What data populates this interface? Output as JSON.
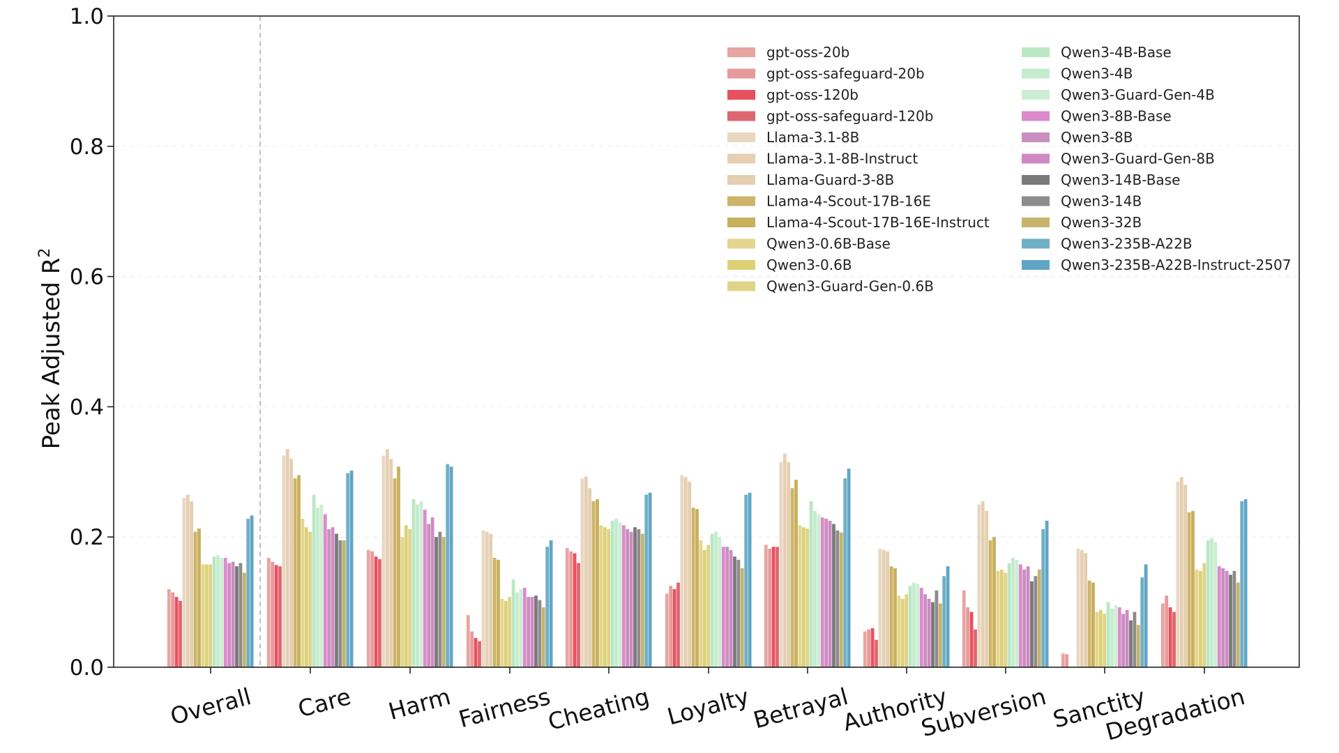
{
  "chart_data": {
    "type": "bar",
    "title": "",
    "xlabel": "",
    "ylabel": "Peak Adjusted R",
    "ylabel_superscript": "2",
    "ylim": [
      0,
      1.0
    ],
    "yticks": [
      "0.0",
      "0.2",
      "0.4",
      "0.6",
      "0.8",
      "1.0"
    ],
    "grid": true,
    "legend_position": "top-right",
    "categories": [
      "Overall",
      "Care",
      "Harm",
      "Fairness",
      "Cheating",
      "Loyalty",
      "Betrayal",
      "Authority",
      "Subversion",
      "Sanctity",
      "Degradation"
    ],
    "series": [
      {
        "name": "gpt-oss-20b",
        "color": "#e8a5a0",
        "values": [
          0.12,
          0.168,
          0.18,
          0.08,
          0.183,
          0.113,
          0.188,
          0.055,
          0.118,
          0.021,
          0.098
        ]
      },
      {
        "name": "gpt-oss-safeguard-20b",
        "color": "#e79a9c",
        "values": [
          0.115,
          0.162,
          0.178,
          0.055,
          0.178,
          0.125,
          0.182,
          0.058,
          0.092,
          0.02,
          0.11
        ]
      },
      {
        "name": "gpt-oss-120b",
        "color": "#e8505e",
        "values": [
          0.108,
          0.157,
          0.17,
          0.045,
          0.175,
          0.12,
          0.185,
          0.06,
          0.085,
          0.0,
          0.092
        ]
      },
      {
        "name": "gpt-oss-safeguard-120b",
        "color": "#de6671",
        "values": [
          0.102,
          0.155,
          0.166,
          0.04,
          0.16,
          0.13,
          0.185,
          0.042,
          0.058,
          0.0,
          0.085
        ]
      },
      {
        "name": "Llama-3.1-8B",
        "color": "#e8d8c2",
        "values": [
          0.26,
          0.325,
          0.325,
          0.21,
          0.29,
          0.295,
          0.315,
          0.182,
          0.25,
          0.182,
          0.285
        ]
      },
      {
        "name": "Llama-3.1-8B-Instruct",
        "color": "#e6cfb3",
        "values": [
          0.265,
          0.335,
          0.335,
          0.208,
          0.293,
          0.292,
          0.328,
          0.18,
          0.255,
          0.18,
          0.292
        ]
      },
      {
        "name": "Llama-Guard-3-8B",
        "color": "#e3cfb1",
        "values": [
          0.255,
          0.32,
          0.32,
          0.205,
          0.275,
          0.285,
          0.315,
          0.178,
          0.24,
          0.175,
          0.28
        ]
      },
      {
        "name": "Llama-4-Scout-17B-16E",
        "color": "#cdb46a",
        "values": [
          0.208,
          0.29,
          0.29,
          0.168,
          0.255,
          0.245,
          0.275,
          0.155,
          0.195,
          0.133,
          0.238
        ]
      },
      {
        "name": "Llama-4-Scout-17B-16E-Instruct",
        "color": "#c9b05c",
        "values": [
          0.213,
          0.295,
          0.308,
          0.165,
          0.258,
          0.243,
          0.288,
          0.152,
          0.2,
          0.13,
          0.24
        ]
      },
      {
        "name": "Qwen3-0.6B-Base",
        "color": "#e3d68e",
        "values": [
          0.158,
          0.228,
          0.2,
          0.105,
          0.218,
          0.195,
          0.218,
          0.11,
          0.148,
          0.085,
          0.15
        ]
      },
      {
        "name": "Qwen3-0.6B",
        "color": "#ddd175",
        "values": [
          0.158,
          0.215,
          0.218,
          0.102,
          0.215,
          0.18,
          0.215,
          0.105,
          0.15,
          0.088,
          0.148
        ]
      },
      {
        "name": "Qwen3-Guard-Gen-0.6B",
        "color": "#e0d48a",
        "values": [
          0.158,
          0.208,
          0.212,
          0.108,
          0.212,
          0.188,
          0.213,
          0.112,
          0.145,
          0.082,
          0.16
        ]
      },
      {
        "name": "Qwen3-4B-Base",
        "color": "#b9e8c4",
        "values": [
          0.17,
          0.265,
          0.258,
          0.135,
          0.225,
          0.205,
          0.255,
          0.125,
          0.16,
          0.1,
          0.195
        ]
      },
      {
        "name": "Qwen3-4B",
        "color": "#c4ecce",
        "values": [
          0.172,
          0.245,
          0.25,
          0.115,
          0.228,
          0.208,
          0.24,
          0.13,
          0.168,
          0.09,
          0.198
        ]
      },
      {
        "name": "Qwen3-Guard-Gen-4B",
        "color": "#cdeed3",
        "values": [
          0.168,
          0.25,
          0.255,
          0.12,
          0.222,
          0.2,
          0.235,
          0.128,
          0.165,
          0.095,
          0.192
        ]
      },
      {
        "name": "Qwen3-8B-Base",
        "color": "#dd8acd",
        "values": [
          0.168,
          0.235,
          0.242,
          0.122,
          0.218,
          0.185,
          0.23,
          0.122,
          0.158,
          0.092,
          0.155
        ]
      },
      {
        "name": "Qwen3-8B",
        "color": "#c98fbf",
        "values": [
          0.16,
          0.212,
          0.22,
          0.108,
          0.212,
          0.185,
          0.228,
          0.112,
          0.15,
          0.082,
          0.152
        ]
      },
      {
        "name": "Qwen3-Guard-Gen-8B",
        "color": "#cf8ac4",
        "values": [
          0.162,
          0.215,
          0.23,
          0.108,
          0.208,
          0.18,
          0.225,
          0.105,
          0.155,
          0.088,
          0.148
        ]
      },
      {
        "name": "Qwen3-14B-Base",
        "color": "#7a7a7a",
        "values": [
          0.155,
          0.205,
          0.2,
          0.11,
          0.215,
          0.17,
          0.22,
          0.1,
          0.132,
          0.072,
          0.142
        ]
      },
      {
        "name": "Qwen3-14B",
        "color": "#8c8c8c",
        "values": [
          0.16,
          0.195,
          0.208,
          0.103,
          0.212,
          0.165,
          0.21,
          0.118,
          0.14,
          0.085,
          0.148
        ]
      },
      {
        "name": "Qwen3-32B",
        "color": "#c6b46d",
        "values": [
          0.145,
          0.195,
          0.2,
          0.092,
          0.205,
          0.152,
          0.207,
          0.098,
          0.15,
          0.065,
          0.13
        ]
      },
      {
        "name": "Qwen3-235B-A22B",
        "color": "#6fb0c7",
        "values": [
          0.228,
          0.298,
          0.312,
          0.185,
          0.265,
          0.265,
          0.29,
          0.14,
          0.212,
          0.138,
          0.255
        ]
      },
      {
        "name": "Qwen3-235B-A22B-Instruct-2507",
        "color": "#5fa6c6",
        "values": [
          0.233,
          0.302,
          0.308,
          0.195,
          0.268,
          0.268,
          0.305,
          0.155,
          0.225,
          0.158,
          0.258
        ]
      }
    ]
  }
}
